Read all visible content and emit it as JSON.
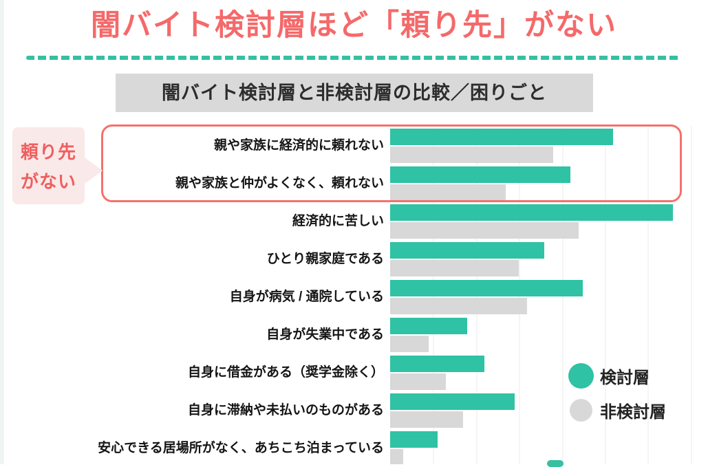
{
  "header": {
    "title": "闇バイト検討層ほど「頼り先」がない"
  },
  "section": {
    "title": "闇バイト検討層と非検討層の比較／困りごと"
  },
  "callout": {
    "line1": "頼り先",
    "line2": "がない"
  },
  "legend": {
    "items": [
      {
        "label": "検討層",
        "color": "#2fc2a4"
      },
      {
        "label": "非検討層",
        "color": "#d8d8d8"
      }
    ]
  },
  "colors": {
    "accent_teal": "#2fc2a4",
    "bar_gray": "#d8d8d8",
    "title_red": "#f5696a",
    "highlight_border": "#f4716c",
    "callout_bg": "#fae9e9",
    "callout_text": "#ee5f5f",
    "section_bg": "#d9d9d9"
  },
  "chart_data": {
    "type": "bar",
    "orientation": "horizontal",
    "title": "闇バイト検討層と非検討層の比較／困りごと",
    "categories": [
      "親や家族に経済的に頼れない",
      "親や家族と仲がよくなく、頼れない",
      "経済的に苦しい",
      "ひとり親家庭である",
      "自身が病気 / 通院している",
      "自身が失業中である",
      "自身に借金がある（奨学金除く）",
      "自身に滞納や未払いのものがある",
      "安心できる居場所がなく、あちこち泊まっている"
    ],
    "series": [
      {
        "name": "検討層",
        "color": "#2fc2a4",
        "values": [
          52,
          42,
          66,
          36,
          45,
          18,
          22,
          29,
          11
        ]
      },
      {
        "name": "非検討層",
        "color": "#d8d8d8",
        "values": [
          38,
          27,
          44,
          30,
          32,
          9,
          13,
          17,
          3
        ]
      }
    ],
    "value_unit": "percent (estimated from bar lengths; chart shows no numeric labels)",
    "xlim": [
      0,
      74
    ],
    "gridlines": true,
    "legend_position": "right",
    "highlighted_categories": [
      0,
      1
    ],
    "highlight_label": "頼り先がない"
  }
}
